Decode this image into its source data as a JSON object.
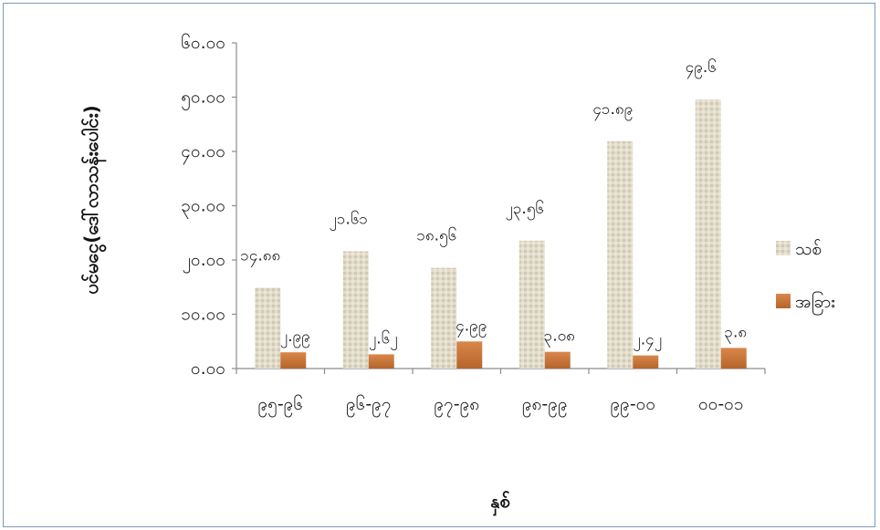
{
  "chart_data": {
    "type": "bar",
    "title": "",
    "xlabel": "နှစ်",
    "ylabel": "ပင်မငွေ(ဒေါ်လာသန်းပေါင်း)",
    "ylim": [
      0,
      60
    ],
    "grid": false,
    "legend_position": "right",
    "y_ticks": [
      0,
      10,
      20,
      30,
      40,
      50,
      60
    ],
    "y_tick_labels": [
      "၀.၀၀",
      "၁၀.၀၀",
      "၂၀.၀၀",
      "၃၀.၀၀",
      "၄၀.၀၀",
      "၅၀.၀၀",
      "၆၀.၀၀"
    ],
    "categories": [
      "၉၅-၉၆",
      "၉၆-၉၇",
      "၉၇-၉၈",
      "၉၈-၉၉",
      "၉၉-၀၀",
      "၀၀-၀၁"
    ],
    "series": [
      {
        "name": "သစ်",
        "color": "#ddd6c4",
        "values": [
          14.88,
          21.61,
          18.56,
          23.56,
          41.89,
          49.6
        ],
        "labels": [
          "၁၄.၈၈",
          "၂၁.၆၁",
          "၁၈.၅၆",
          "၂၃.၅၆",
          "၄၁.၈၉",
          "၄၉.၆"
        ]
      },
      {
        "name": "အခြား",
        "color": "#c8763a",
        "values": [
          2.99,
          2.62,
          4.99,
          3.08,
          2.42,
          3.8
        ],
        "labels": [
          "၂.၉၉",
          "၂.၆၂",
          "၄.၉၉",
          "၃.၀၈",
          "၂.၄၂",
          "၃.၈"
        ]
      }
    ]
  }
}
